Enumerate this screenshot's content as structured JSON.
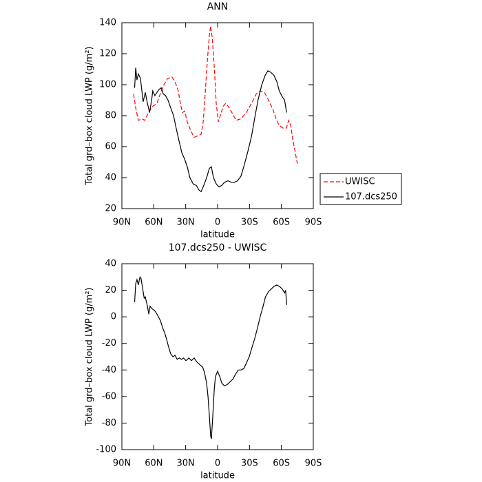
{
  "chart_data": [
    {
      "type": "line",
      "title": "ANN",
      "xlabel": "latitude",
      "ylabel": "Total grd–box cloud LWP (g/m²)",
      "xlim": [
        90,
        -90
      ],
      "ylim": [
        20,
        140
      ],
      "xticks": [
        {
          "value": 90,
          "label": "90N"
        },
        {
          "value": 60,
          "label": "60N"
        },
        {
          "value": 30,
          "label": "30N"
        },
        0,
        {
          "value": -30,
          "label": "30S"
        },
        {
          "value": -60,
          "label": "60S"
        },
        {
          "value": -90,
          "label": "90S"
        }
      ],
      "yticks": [
        20,
        40,
        60,
        80,
        100,
        120,
        140
      ],
      "legend": "right",
      "series": [
        {
          "name": "UWISC",
          "color": "#ff0000",
          "dash": "dashed",
          "x": [
            79,
            77,
            74.5,
            71,
            68.6,
            65,
            61,
            57,
            54,
            50.5,
            47,
            43,
            40,
            37,
            35,
            33,
            31,
            28.5,
            25,
            22,
            19,
            15.5,
            13.5,
            11.6,
            9.7,
            7.7,
            6.5,
            5,
            3,
            1.3,
            -0.7,
            -2.6,
            -5.2,
            -7.8,
            -11,
            -14.3,
            -17.5,
            -22,
            -27,
            -32,
            -36.3,
            -40.2,
            -44,
            -48,
            -52,
            -55,
            -57.7,
            -61.5,
            -64.8,
            -66.7,
            -68.7,
            -70.6,
            -72.6,
            -75
          ],
          "values": [
            94,
            85,
            77,
            78,
            77,
            82,
            86,
            88,
            94,
            100,
            104,
            105,
            102,
            96,
            88,
            82,
            83,
            76,
            70,
            66,
            67,
            68,
            76,
            95,
            115,
            132,
            138,
            130,
            110,
            88,
            76,
            80,
            86,
            88,
            85,
            81,
            77,
            78,
            82,
            88,
            94,
            96,
            95,
            90,
            84,
            78,
            74,
            72,
            72,
            77,
            74,
            65,
            58,
            49
          ]
        },
        {
          "name": "107.dcs250",
          "color": "#000000",
          "dash": "solid",
          "x": [
            78,
            77,
            75.8,
            74.5,
            72.5,
            71,
            70,
            68,
            66,
            64,
            62,
            61,
            59,
            57,
            55,
            53,
            51,
            49,
            46.6,
            44,
            41.4,
            39,
            36,
            33.6,
            31,
            28.5,
            26,
            23,
            20,
            17.5,
            15.5,
            13,
            10.3,
            7.7,
            5.8,
            3.9,
            1.3,
            -1.3,
            -3.9,
            -6.5,
            -9.7,
            -13,
            -15.6,
            -18.8,
            -22,
            -25,
            -28.5,
            -32,
            -35,
            -38,
            -41.6,
            -44.7,
            -47.3,
            -50,
            -53,
            -55.7,
            -58,
            -61,
            -63,
            -64,
            -64.8
          ],
          "values": [
            98,
            111,
            103,
            107,
            104,
            95,
            89,
            95,
            88,
            82,
            90,
            96,
            93,
            95,
            97,
            98,
            94,
            93,
            90,
            85,
            80,
            72,
            63,
            56,
            52,
            47,
            40,
            36,
            35,
            32,
            31,
            35,
            40,
            46,
            47,
            40,
            36,
            34,
            35,
            37,
            38,
            37,
            37,
            38,
            41,
            48,
            57,
            67,
            79,
            90,
            100,
            106,
            109,
            108,
            106,
            102,
            96,
            92,
            90,
            86,
            82
          ]
        }
      ]
    },
    {
      "type": "line",
      "title": "107.dcs250 - UWISC",
      "xlabel": "latitude",
      "ylabel": "Total grd–box cloud LWP (g/m²)",
      "xlim": [
        90,
        -90
      ],
      "ylim": [
        -100,
        40
      ],
      "xticks": [
        {
          "value": 90,
          "label": "90N"
        },
        {
          "value": 60,
          "label": "60N"
        },
        {
          "value": 30,
          "label": "30N"
        },
        0,
        {
          "value": -30,
          "label": "30S"
        },
        {
          "value": -60,
          "label": "60S"
        },
        {
          "value": -90,
          "label": "90S"
        }
      ],
      "yticks": [
        -100,
        -80,
        -60,
        -40,
        -20,
        0,
        20,
        40
      ],
      "series": [
        {
          "color": "#000000",
          "dash": "solid",
          "x": [
            78,
            77,
            75.8,
            74.5,
            73,
            72,
            70.6,
            69,
            68,
            66,
            64.7,
            63.5,
            61.5,
            59.6,
            57.6,
            55.7,
            53.7,
            51.8,
            49.8,
            47.9,
            46,
            44,
            42,
            40,
            38,
            36,
            34,
            32,
            29.8,
            27,
            24.6,
            22,
            19.4,
            16.8,
            14,
            12.3,
            10.3,
            9,
            7.7,
            6.5,
            5.8,
            4.5,
            3.2,
            2,
            0,
            -2,
            -4,
            -6.5,
            -9,
            -11.7,
            -14.3,
            -17,
            -19.4,
            -22,
            -24.6,
            -27,
            -29.8,
            -32,
            -35,
            -37.6,
            -40,
            -42.8,
            -45,
            -48,
            -50.6,
            -53,
            -55.7,
            -58,
            -60.8,
            -63,
            -64,
            -65
          ],
          "values": [
            11,
            25,
            28,
            24,
            30,
            29,
            22,
            14,
            15,
            8,
            2,
            8,
            6,
            5,
            3,
            0,
            -3,
            -8,
            -12,
            -17,
            -23,
            -28,
            -30,
            -29,
            -32,
            -31,
            -32,
            -31,
            -33,
            -31,
            -33,
            -31,
            -34,
            -36,
            -38,
            -42,
            -50,
            -60,
            -75,
            -90,
            -92,
            -75,
            -55,
            -45,
            -41,
            -45,
            -50,
            -52,
            -51,
            -49,
            -47,
            -43,
            -40,
            -40,
            -39,
            -35,
            -30,
            -24,
            -16,
            -8,
            0,
            8,
            15,
            19,
            21,
            23,
            24,
            23,
            21,
            18,
            20,
            9
          ]
        }
      ]
    }
  ]
}
